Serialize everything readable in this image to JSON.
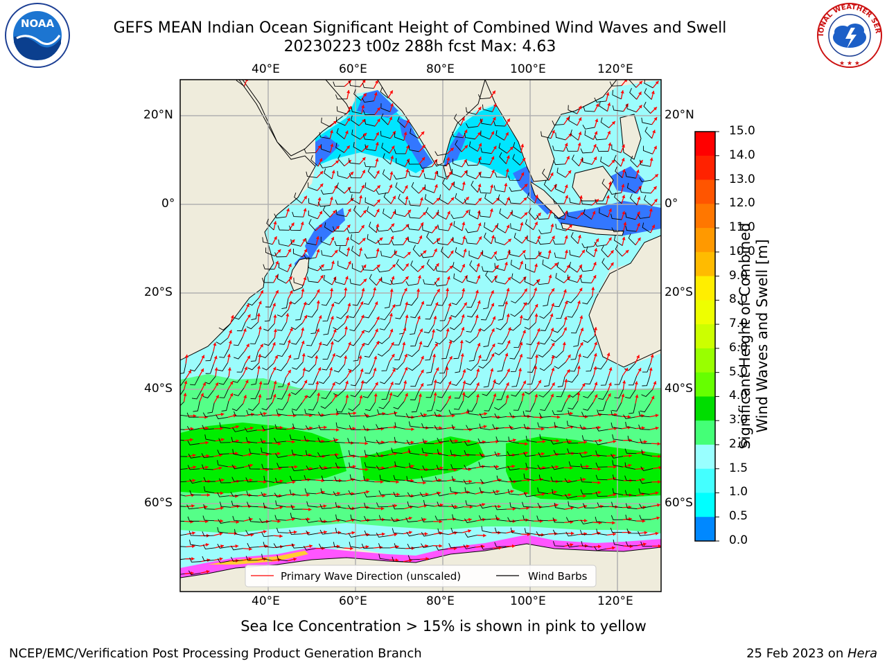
{
  "header": {
    "title_line1": "GEFS MEAN Indian Ocean Significant Height of Combined Wind Waves and Swell",
    "title_line2": "20230223 t00z 288h fcst   Max: 4.63"
  },
  "logos": {
    "left": "NOAA",
    "right": "NATIONAL WEATHER SERVICE"
  },
  "map": {
    "lon_labels": [
      "40°E",
      "60°E",
      "80°E",
      "100°E",
      "120°E"
    ],
    "lat_labels_left": [
      "20°N",
      "0°",
      "20°S",
      "40°S",
      "60°S"
    ],
    "lat_labels_right": [
      "20°N",
      "0°",
      "20°S",
      "40°S",
      "60°S"
    ],
    "extent_lon": [
      20,
      130
    ],
    "extent_lat": [
      -75,
      27
    ],
    "colors": {
      "land": "#efecdc",
      "ocean_low": "#3377ff",
      "ocean_mid": "#00e5ff",
      "ocean_main": "#9cfcfc",
      "band_light": "#55ff88",
      "band_strong": "#00ee00",
      "ice": "#ff55ff",
      "arrow": "#ff0000",
      "barb": "#000000"
    }
  },
  "legend": {
    "wave_label": "Primary Wave Direction (unscaled)",
    "barb_label": "Wind Barbs"
  },
  "colorbar": {
    "label_line1": "Significant Height of Combined",
    "label_line2": "Wind Waves and Swell [m]",
    "ticks": [
      "15.0",
      "14.0",
      "13.0",
      "12.0",
      "11.0",
      "10.0",
      "9.0",
      "8.0",
      "7.0",
      "6.0",
      "5.0",
      "4.0",
      "3.0",
      "2.0",
      "1.5",
      "1.0",
      "0.5",
      "0.0"
    ],
    "colors": [
      "#ff0000",
      "#ff2200",
      "#ff5500",
      "#ff7700",
      "#ff9900",
      "#ffbb00",
      "#ffee00",
      "#eeff00",
      "#ccff00",
      "#99ff00",
      "#66ff00",
      "#00dd00",
      "#44ff77",
      "#99ffff",
      "#44ffff",
      "#00ffff",
      "#0088ff",
      "#0000ff"
    ]
  },
  "footer": {
    "note": "Sea Ice Concentration > 15% is shown in pink to yellow",
    "left": "NCEP/EMC/Verification Post Processing Product Generation Branch",
    "right_prefix": "25 Feb 2023 on ",
    "right_machine": "Hera"
  }
}
